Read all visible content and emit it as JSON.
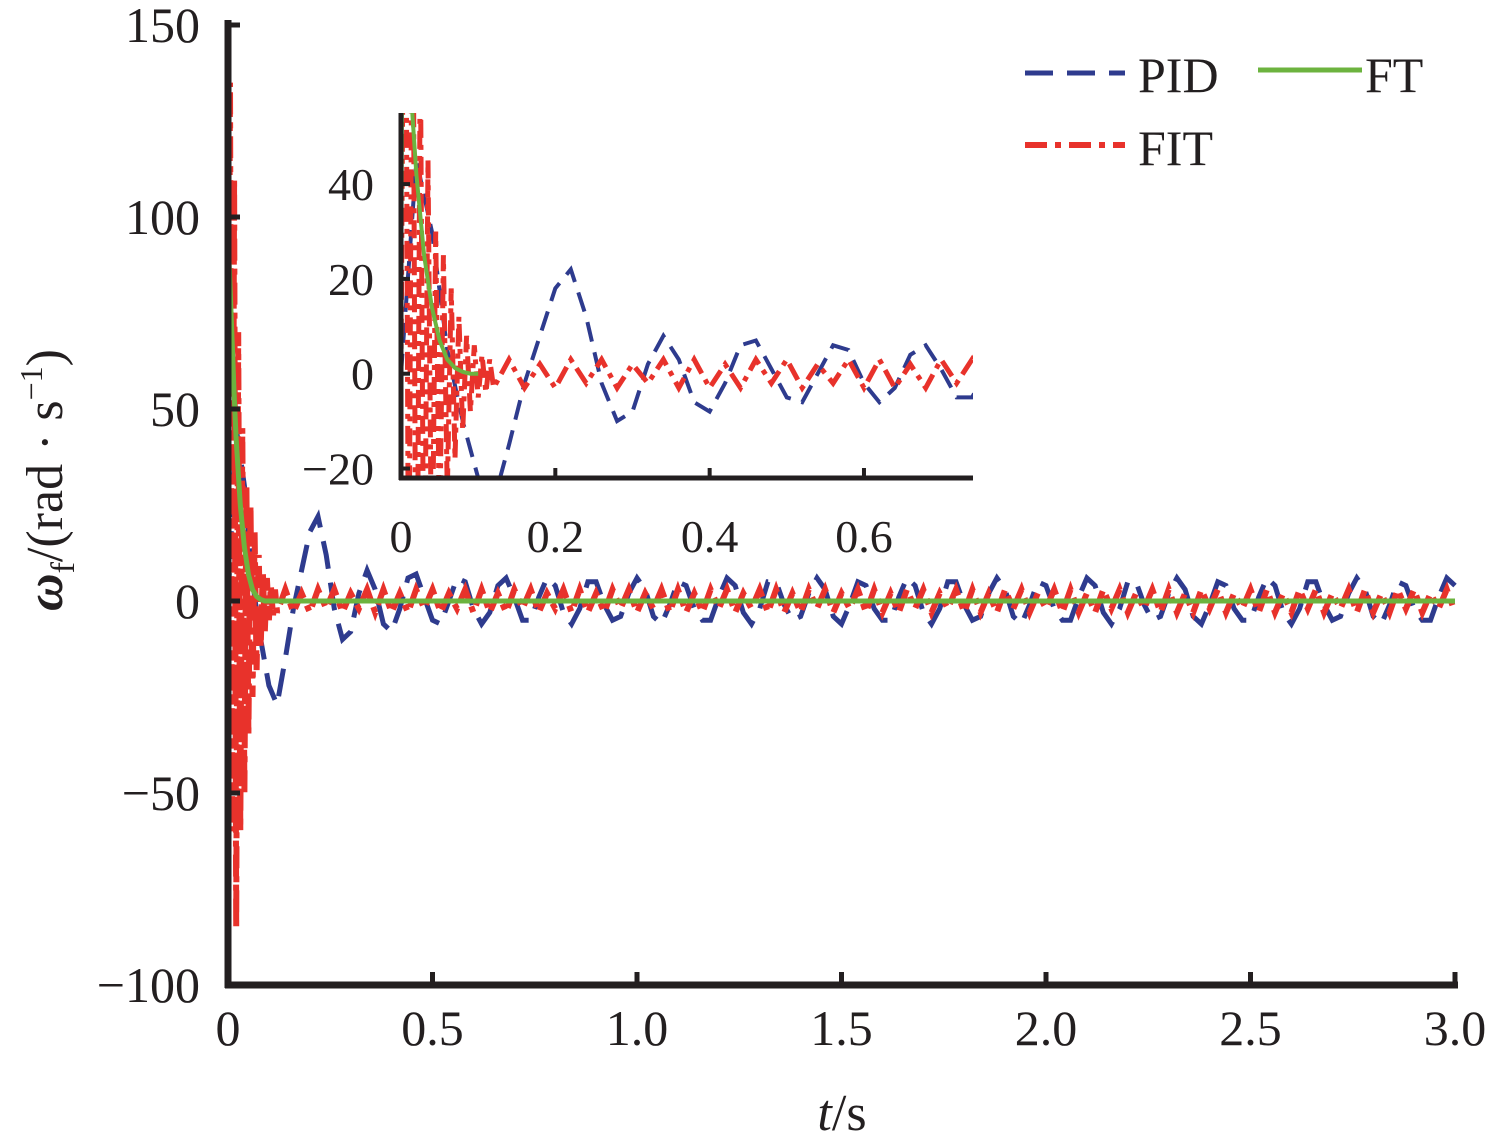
{
  "chart_data": {
    "type": "line",
    "xlabel": {
      "var": "t",
      "unit": "/s"
    },
    "ylabel": {
      "var": "ω",
      "sub": "f",
      "unit": "/(rad · s",
      "sup": "−1",
      "close": ")"
    },
    "xlim": [
      0,
      3.0
    ],
    "ylim": [
      -100,
      150
    ],
    "xticks": [
      "0",
      "0.5",
      "1.0",
      "1.5",
      "2.0",
      "2.5",
      "3.0"
    ],
    "xtick_values": [
      0,
      0.5,
      1.0,
      1.5,
      2.0,
      2.5,
      3.0
    ],
    "yticks": [
      "150",
      "100",
      "50",
      "0",
      "−50",
      "−100"
    ],
    "ytick_values": [
      150,
      100,
      50,
      0,
      -50,
      -100
    ],
    "grid": false,
    "legend": {
      "placement": "top-right",
      "entries": [
        "PID",
        "FT",
        "FIT"
      ]
    },
    "colors": {
      "PID": "#2e3b8e",
      "FT": "#6cb33f",
      "FIT": "#e8322b",
      "axis": "#231f20"
    },
    "inset": {
      "xlim": [
        0,
        0.74
      ],
      "ylim": [
        -22,
        55
      ],
      "xticks": [
        "0",
        "0.2",
        "0.4",
        "0.6"
      ],
      "xtick_values": [
        0,
        0.2,
        0.4,
        0.6
      ],
      "yticks": [
        "40",
        "20",
        "0",
        "−20"
      ],
      "ytick_values": [
        40,
        20,
        0,
        -20
      ]
    },
    "series": [
      {
        "name": "PID",
        "style": "dashed",
        "x": [
          0,
          0.02,
          0.04,
          0.06,
          0.08,
          0.1,
          0.12,
          0.14,
          0.16,
          0.18,
          0.2,
          0.22,
          0.24,
          0.26,
          0.28,
          0.3,
          0.32,
          0.34,
          0.36,
          0.38,
          0.4,
          0.42,
          0.44,
          0.46,
          0.48,
          0.5,
          0.52,
          0.54,
          0.56,
          0.58,
          0.6,
          0.62,
          0.64,
          0.66,
          0.68,
          0.7,
          0.72,
          0.74,
          0.76,
          0.78,
          0.8,
          0.82,
          0.84,
          0.86,
          0.88,
          0.9,
          0.92,
          0.94,
          0.96,
          0.98,
          1,
          1.02,
          1.04,
          1.06,
          1.08,
          1.1,
          1.12,
          1.14,
          1.16,
          1.18,
          1.2,
          1.22,
          1.24,
          1.26,
          1.28,
          1.3,
          1.32,
          1.34,
          1.36,
          1.38,
          1.4,
          1.42,
          1.44,
          1.46,
          1.48,
          1.5,
          1.52,
          1.54,
          1.56,
          1.58,
          1.6,
          1.62,
          1.64,
          1.66,
          1.68,
          1.7,
          1.72,
          1.74,
          1.76,
          1.78,
          1.8,
          1.82,
          1.84,
          1.86,
          1.88,
          1.9,
          1.92,
          1.94,
          1.96,
          1.98,
          2,
          2.02,
          2.04,
          2.06,
          2.08,
          2.1,
          2.12,
          2.14,
          2.16,
          2.18,
          2.2,
          2.22,
          2.24,
          2.26,
          2.28,
          2.3,
          2.32,
          2.34,
          2.36,
          2.38,
          2.4,
          2.42,
          2.44,
          2.46,
          2.48,
          2.5,
          2.52,
          2.54,
          2.56,
          2.58,
          2.6,
          2.62,
          2.64,
          2.66,
          2.68,
          2.7,
          2.72,
          2.74,
          2.76,
          2.78,
          2.8,
          2.82,
          2.84,
          2.86,
          2.88,
          2.9,
          2.92,
          2.94,
          2.96,
          2.98,
          3
        ],
        "values": [
          0,
          45,
          30,
          5,
          -10,
          -22,
          -27,
          -15,
          -2,
          8,
          18,
          22,
          12,
          -2,
          -10,
          -8,
          2,
          8,
          3,
          -6,
          -8,
          -2,
          6,
          7,
          1,
          -5,
          -6,
          0,
          6,
          5,
          -2,
          -6,
          -3,
          4,
          6,
          1,
          -5,
          -5,
          1,
          6,
          4,
          -3,
          -6,
          -2,
          5,
          5,
          -1,
          -5,
          -4,
          2,
          6,
          3,
          -4,
          -6,
          -1,
          5,
          4,
          -2,
          -5,
          -5,
          1,
          6,
          4,
          -3,
          -6,
          -2,
          5,
          5,
          -1,
          -5,
          -4,
          2,
          6,
          3,
          -4,
          -6,
          -1,
          5,
          4,
          -2,
          -5,
          -5,
          1,
          6,
          4,
          -3,
          -6,
          -2,
          5,
          5,
          -1,
          -5,
          -4,
          2,
          6,
          3,
          -4,
          -6,
          -1,
          5,
          4,
          -2,
          -5,
          -5,
          1,
          6,
          4,
          -3,
          -6,
          -2,
          5,
          5,
          -1,
          -5,
          -4,
          2,
          6,
          3,
          -4,
          -6,
          -1,
          5,
          4,
          -2,
          -5,
          -5,
          1,
          6,
          4,
          -3,
          -6,
          -2,
          5,
          5,
          -1,
          -5,
          -4,
          2,
          6,
          3,
          -4,
          -6,
          -1,
          5,
          4,
          -2,
          -5,
          -5,
          1,
          6,
          4
        ]
      },
      {
        "name": "FT",
        "style": "solid",
        "x": [
          0,
          0.002,
          0.005,
          0.01,
          0.015,
          0.02,
          0.03,
          0.04,
          0.05,
          0.06,
          0.07,
          0.08,
          0.09,
          0.1,
          3.0
        ],
        "values": [
          0,
          90,
          82,
          68,
          54,
          42,
          25,
          14,
          7,
          3,
          1.2,
          0.4,
          0,
          0,
          0
        ]
      },
      {
        "name": "FIT",
        "style": "dash-dot",
        "x": [
          0,
          0.005,
          0.01,
          0.015,
          0.02,
          0.025,
          0.03,
          0.035,
          0.04,
          0.045,
          0.05,
          0.055,
          0.06,
          0.065,
          0.07,
          0.075,
          0.08,
          0.085,
          0.09,
          0.095,
          0.1,
          0.105,
          0.11,
          0.115,
          0.12,
          0.14,
          0.16,
          0.18,
          0.2,
          0.22,
          0.24,
          0.26,
          0.28,
          0.3,
          0.32,
          0.34,
          0.36,
          0.38,
          0.4,
          0.42,
          0.44,
          0.46,
          0.48,
          0.5,
          0.52,
          0.54,
          0.56,
          0.58,
          0.6,
          0.62,
          0.64,
          0.66,
          0.68,
          0.7,
          0.72,
          0.74,
          0.76,
          0.78,
          0.8,
          0.82,
          0.84,
          0.86,
          0.88,
          0.9,
          0.92,
          0.94,
          0.96,
          0.98,
          1,
          1.02,
          1.04,
          1.06,
          1.08,
          1.1,
          1.12,
          1.14,
          1.16,
          1.18,
          1.2,
          1.22,
          1.24,
          1.26,
          1.28,
          1.3,
          1.32,
          1.34,
          1.36,
          1.38,
          1.4,
          1.42,
          1.44,
          1.46,
          1.48,
          1.5,
          1.52,
          1.54,
          1.56,
          1.58,
          1.6,
          1.62,
          1.64,
          1.66,
          1.68,
          1.7,
          1.72,
          1.74,
          1.76,
          1.78,
          1.8,
          1.82,
          1.84,
          1.86,
          1.88,
          1.9,
          1.92,
          1.94,
          1.96,
          1.98,
          2,
          2.02,
          2.04,
          2.06,
          2.08,
          2.1,
          2.12,
          2.14,
          2.16,
          2.18,
          2.2,
          2.22,
          2.24,
          2.26,
          2.28,
          2.3,
          2.32,
          2.34,
          2.36,
          2.38,
          2.4,
          2.42,
          2.44,
          2.46,
          2.48,
          2.5,
          2.52,
          2.54,
          2.56,
          2.58,
          2.6,
          2.62,
          2.64,
          2.66,
          2.68,
          2.7,
          2.72,
          2.74,
          2.76,
          2.78,
          2.8,
          2.82,
          2.84,
          2.86,
          2.88,
          2.9,
          2.92,
          2.94,
          2.96,
          2.98,
          3
        ],
        "values": [
          0,
          135,
          -60,
          110,
          -85,
          70,
          -60,
          45,
          -50,
          30,
          -35,
          25,
          -25,
          18,
          -18,
          12,
          -12,
          8,
          -8,
          6,
          -5,
          4,
          -4,
          3,
          -3,
          3,
          -3,
          2,
          -3,
          3,
          -2,
          3,
          -3,
          2,
          -2,
          3,
          -3,
          3,
          -3,
          2,
          -3,
          3,
          -2,
          3,
          -3,
          2,
          -2,
          3,
          -3,
          3,
          -3,
          2,
          -3,
          3,
          -2,
          3,
          -3,
          2,
          -2,
          3,
          -3,
          3,
          -3,
          2,
          -3,
          3,
          -2,
          3,
          -3,
          2,
          -2,
          3,
          -3,
          3,
          -3,
          2,
          -3,
          3,
          -2,
          3,
          -3,
          2,
          -2,
          3,
          -3,
          3,
          -3,
          2,
          -3,
          3,
          -2,
          3,
          -3,
          2,
          -2,
          3,
          -3,
          3,
          -3,
          2,
          -3,
          3,
          -2,
          3,
          -3,
          2,
          -2,
          3,
          -3,
          3,
          -3,
          2,
          -3,
          3,
          -2,
          3,
          -3,
          2,
          -2,
          3,
          -3,
          3,
          -3,
          2,
          -3,
          3,
          -2,
          3,
          -3,
          2,
          -2,
          3,
          -3,
          3,
          -3,
          2,
          -3,
          3,
          -2,
          3,
          -3,
          2,
          -2,
          3,
          -3,
          3,
          -3,
          2,
          -3,
          3,
          -2,
          3,
          -3,
          2,
          -2,
          3,
          -3,
          3,
          -3,
          2,
          -3,
          3,
          -2,
          3,
          -3,
          2,
          -2,
          3,
          -3
        ]
      }
    ]
  }
}
